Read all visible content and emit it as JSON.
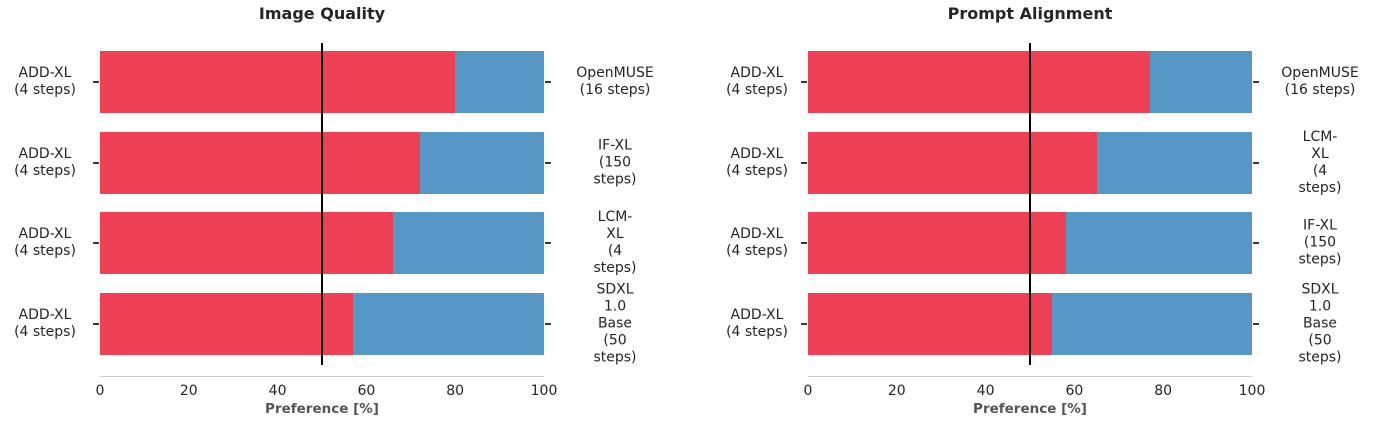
{
  "colors": {
    "left_series": "#EE4156",
    "right_series": "#5697C8",
    "reference_line": "#000000",
    "axis_line": "#CBCBCB",
    "tick_text": "#262626",
    "tick_mark": "#3A3A3A",
    "label_text": "#262626",
    "xlabel_text": "#555555",
    "title_text": "#262626",
    "background": "#FFFFFF"
  },
  "chart_data": [
    {
      "type": "bar",
      "orientation": "horizontal",
      "stacked": true,
      "grid": false,
      "legend": null,
      "title": "Image Quality",
      "xlabel": "Preference [%]",
      "xlim": [
        0,
        100
      ],
      "xticks": [
        0,
        20,
        40,
        60,
        80,
        100
      ],
      "reference_line_x": 50,
      "rows": [
        {
          "left_label": "ADD-XL\n(4 steps)",
          "right_label": "OpenMUSE\n(16 steps)",
          "left_pct": 80,
          "right_pct": 20
        },
        {
          "left_label": "ADD-XL\n(4 steps)",
          "right_label": "IF-XL\n(150 steps)",
          "left_pct": 72,
          "right_pct": 28
        },
        {
          "left_label": "ADD-XL\n(4 steps)",
          "right_label": "LCM-XL\n(4 steps)",
          "left_pct": 66,
          "right_pct": 34
        },
        {
          "left_label": "ADD-XL\n(4 steps)",
          "right_label": "SDXL 1.0 Base\n(50 steps)",
          "left_pct": 57,
          "right_pct": 43
        }
      ]
    },
    {
      "type": "bar",
      "orientation": "horizontal",
      "stacked": true,
      "grid": false,
      "legend": null,
      "title": "Prompt Alignment",
      "xlabel": "Preference [%]",
      "xlim": [
        0,
        100
      ],
      "xticks": [
        0,
        20,
        40,
        60,
        80,
        100
      ],
      "reference_line_x": 50,
      "rows": [
        {
          "left_label": "ADD-XL\n(4 steps)",
          "right_label": "OpenMUSE\n(16 steps)",
          "left_pct": 77,
          "right_pct": 23
        },
        {
          "left_label": "ADD-XL\n(4 steps)",
          "right_label": "LCM-XL\n(4 steps)",
          "left_pct": 65,
          "right_pct": 35
        },
        {
          "left_label": "ADD-XL\n(4 steps)",
          "right_label": "IF-XL\n(150 steps)",
          "left_pct": 58,
          "right_pct": 42
        },
        {
          "left_label": "ADD-XL\n(4 steps)",
          "right_label": "SDXL 1.0 Base\n(50 steps)",
          "left_pct": 55,
          "right_pct": 45
        }
      ]
    }
  ]
}
